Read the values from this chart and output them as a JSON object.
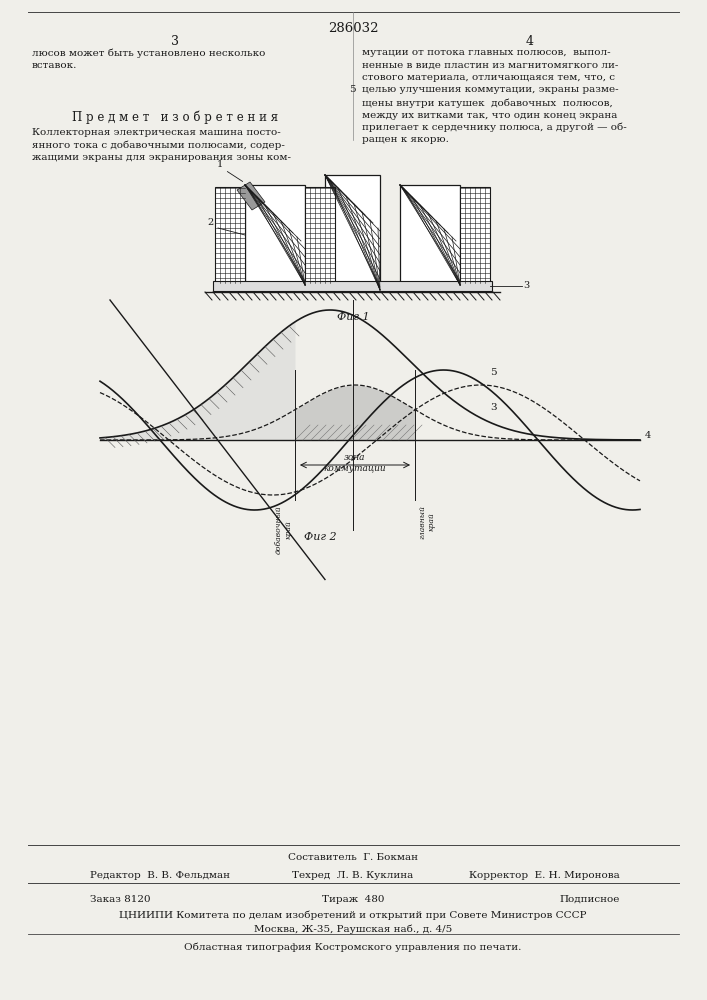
{
  "title_number": "286032",
  "page_numbers": [
    "3",
    "4"
  ],
  "bg_color": "#f0efea",
  "text_color": "#1a1a1a",
  "left_col_top_lines": [
    "люсов может быть установлено несколько",
    "вставок."
  ],
  "right_col_top_lines": [
    "мутации от потока главных полюсов,  выпол-",
    "ненные в виде пластин из магнитомягкого ли-",
    "стового материала, отличающаяся тем, что, с",
    "целью улучшения коммутации, экраны разме-",
    "щены внутри катушек  добавочных  полюсов,",
    "между их витками так, что один конец экрана",
    "прилегает к сердечнику полюса, а другой — об-",
    "ращен к якорю."
  ],
  "line5_index": 3,
  "subject_title": "П р е д м е т   и з о б р е т е н и я",
  "subject_lines": [
    "Коллекторная электрическая машина посто-",
    "янного тока с добавочными полюсами, содер-",
    "жащими экраны для экранирования зоны ком-"
  ],
  "fig1_caption": "Фиг 1",
  "fig2_caption": "Фиг 2",
  "footer_composer": "Составитель  Г. Бокман",
  "footer_editor": "Редактор  В. В. Фельдман",
  "footer_tech": "Техред  Л. В. Куклина",
  "footer_corrector": "Корректор  Е. Н. Миронова",
  "footer_order": "Заказ 8120",
  "footer_edition": "Тираж  480",
  "footer_type": "Подписное",
  "footer_org1": "ЦНИИПИ Комитета по делам изобретений и открытий при Совете Министров СССР",
  "footer_org2": "Москва, Ж-35, Раушская наб., д. 4/5",
  "footer_print": "Областная типография Костромского управления по печати."
}
